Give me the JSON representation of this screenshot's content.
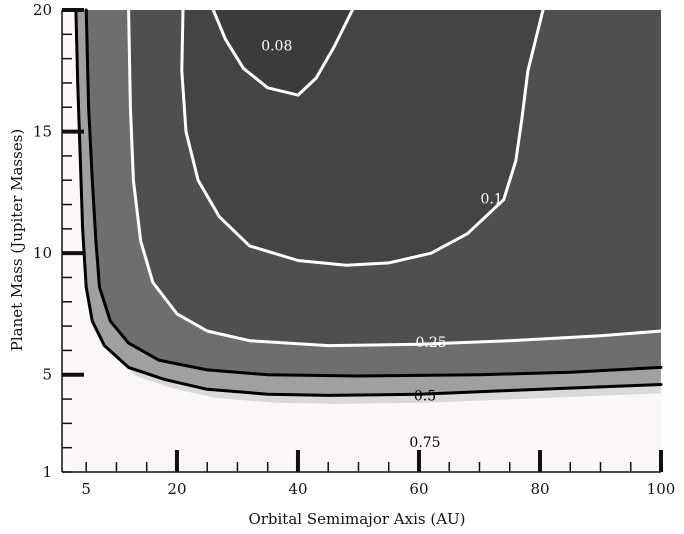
{
  "chart_data": {
    "type": "heatmap",
    "title": "",
    "xlabel": "Orbital Semimajor Axis (AU)",
    "ylabel": "Planet Mass (Jupiter Masses)",
    "xlim": [
      1,
      100
    ],
    "ylim": [
      1,
      20
    ],
    "x_ticks": [
      5,
      20,
      40,
      60,
      80,
      100
    ],
    "y_ticks": [
      1,
      5,
      10,
      15,
      20
    ],
    "colors": {
      "fill_level_0": "#fbf6fa",
      "fill_level_1": "#d9d9d9",
      "fill_level_2": "#a0a0a0",
      "fill_level_3": "#6e6e6e",
      "fill_level_4": "#4f4f4f",
      "fill_level_5": "#444444",
      "fill_level_6": "#3c3c3c"
    },
    "contours": [
      {
        "label": "0.75",
        "color": "#000000",
        "label_pos": [
          61,
          2.2
        ],
        "label_color": "#000000",
        "points": [
          [
            3.3,
            20
          ],
          [
            3.6,
            17
          ],
          [
            4.0,
            14
          ],
          [
            4.4,
            11
          ],
          [
            5.0,
            8.6
          ],
          [
            6.0,
            7.2
          ],
          [
            8,
            6.2
          ],
          [
            12,
            5.3
          ],
          [
            18,
            4.8
          ],
          [
            25,
            4.4
          ],
          [
            35,
            4.2
          ],
          [
            45,
            4.15
          ],
          [
            60,
            4.2
          ],
          [
            75,
            4.35
          ],
          [
            90,
            4.5
          ],
          [
            100,
            4.6
          ]
        ]
      },
      {
        "label": "0.5",
        "color": "#000000",
        "label_pos": [
          61,
          4.1
        ],
        "label_color": "#000000",
        "points": [
          [
            5.0,
            20
          ],
          [
            5.4,
            16
          ],
          [
            6.0,
            13
          ],
          [
            6.6,
            10.5
          ],
          [
            7.2,
            8.6
          ],
          [
            9,
            7.2
          ],
          [
            12,
            6.3
          ],
          [
            17,
            5.6
          ],
          [
            25,
            5.2
          ],
          [
            35,
            5.0
          ],
          [
            50,
            4.95
          ],
          [
            70,
            5.0
          ],
          [
            85,
            5.1
          ],
          [
            100,
            5.3
          ]
        ]
      },
      {
        "label": "0.25",
        "color": "#ffffff",
        "label_pos": [
          62,
          6.3
        ],
        "label_color": "#ffffff",
        "points": [
          [
            12,
            20
          ],
          [
            12.3,
            16
          ],
          [
            12.8,
            13
          ],
          [
            14,
            10.5
          ],
          [
            16,
            8.8
          ],
          [
            20,
            7.5
          ],
          [
            25,
            6.8
          ],
          [
            32,
            6.4
          ],
          [
            45,
            6.2
          ],
          [
            60,
            6.25
          ],
          [
            75,
            6.4
          ],
          [
            90,
            6.6
          ],
          [
            100,
            6.8
          ]
        ]
      },
      {
        "label": "0.1",
        "color": "#ffffff",
        "label_pos": [
          72,
          12.2
        ],
        "label_color": "#ffffff",
        "points": [
          [
            21,
            20
          ],
          [
            20.8,
            17.5
          ],
          [
            21.5,
            15
          ],
          [
            23.5,
            13
          ],
          [
            27,
            11.5
          ],
          [
            32,
            10.3
          ],
          [
            40,
            9.7
          ],
          [
            48,
            9.5
          ],
          [
            55,
            9.6
          ],
          [
            62,
            10
          ],
          [
            68,
            10.8
          ],
          [
            74,
            12.2
          ],
          [
            76,
            13.8
          ],
          [
            77,
            15.5
          ],
          [
            78,
            17.5
          ],
          [
            80.5,
            20
          ]
        ]
      },
      {
        "label": "0.08",
        "color": "#ffffff",
        "label_pos": [
          36.5,
          18.5
        ],
        "label_color": "#ffffff",
        "points": [
          [
            26,
            20
          ],
          [
            28,
            18.8
          ],
          [
            31,
            17.6
          ],
          [
            35,
            16.8
          ],
          [
            40,
            16.5
          ],
          [
            43,
            17.2
          ],
          [
            46,
            18.5
          ],
          [
            49,
            20
          ]
        ]
      }
    ]
  }
}
